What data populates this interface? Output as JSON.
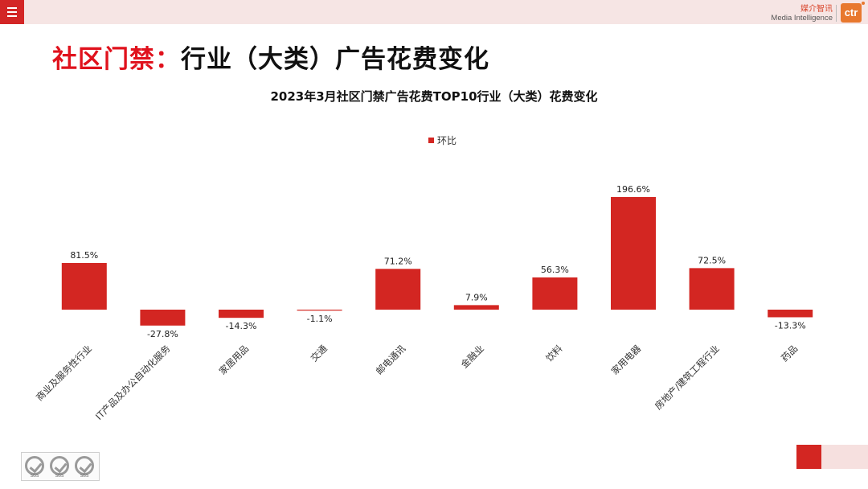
{
  "brand": {
    "name_cn": "媒介智讯",
    "name_en": "Media Intelligence",
    "logo_text": "ctr",
    "logo_color": "#e8782e"
  },
  "header": {
    "title_prefix": "社区门禁：",
    "title_main": "行业（大类）广告花费变化",
    "accent_color": "#e0121d"
  },
  "certifications": [
    "SGS",
    "SGS",
    "SGS"
  ],
  "chart_data": {
    "type": "bar",
    "title": "2023年3月社区门禁广告花费TOP10行业（大类）花费变化",
    "xlabel": "",
    "ylabel": "",
    "legend_position": "top-center",
    "grid": false,
    "categories": [
      "商业及服务性行业",
      "IT产品及办公自动化服务",
      "家居用品",
      "交通",
      "邮电通讯",
      "金融业",
      "饮料",
      "家用电器",
      "房地产/建筑工程行业",
      "药品"
    ],
    "series": [
      {
        "name": "环比",
        "color": "#d32622",
        "values": [
          81.5,
          -27.8,
          -14.3,
          -1.1,
          71.2,
          7.9,
          56.3,
          196.6,
          72.5,
          -13.3
        ],
        "labels": [
          "81.5%",
          "-27.8%",
          "-14.3%",
          "-1.1%",
          "71.2%",
          "7.9%",
          "56.3%",
          "196.6%",
          "72.5%",
          "-13.3%"
        ]
      }
    ]
  }
}
